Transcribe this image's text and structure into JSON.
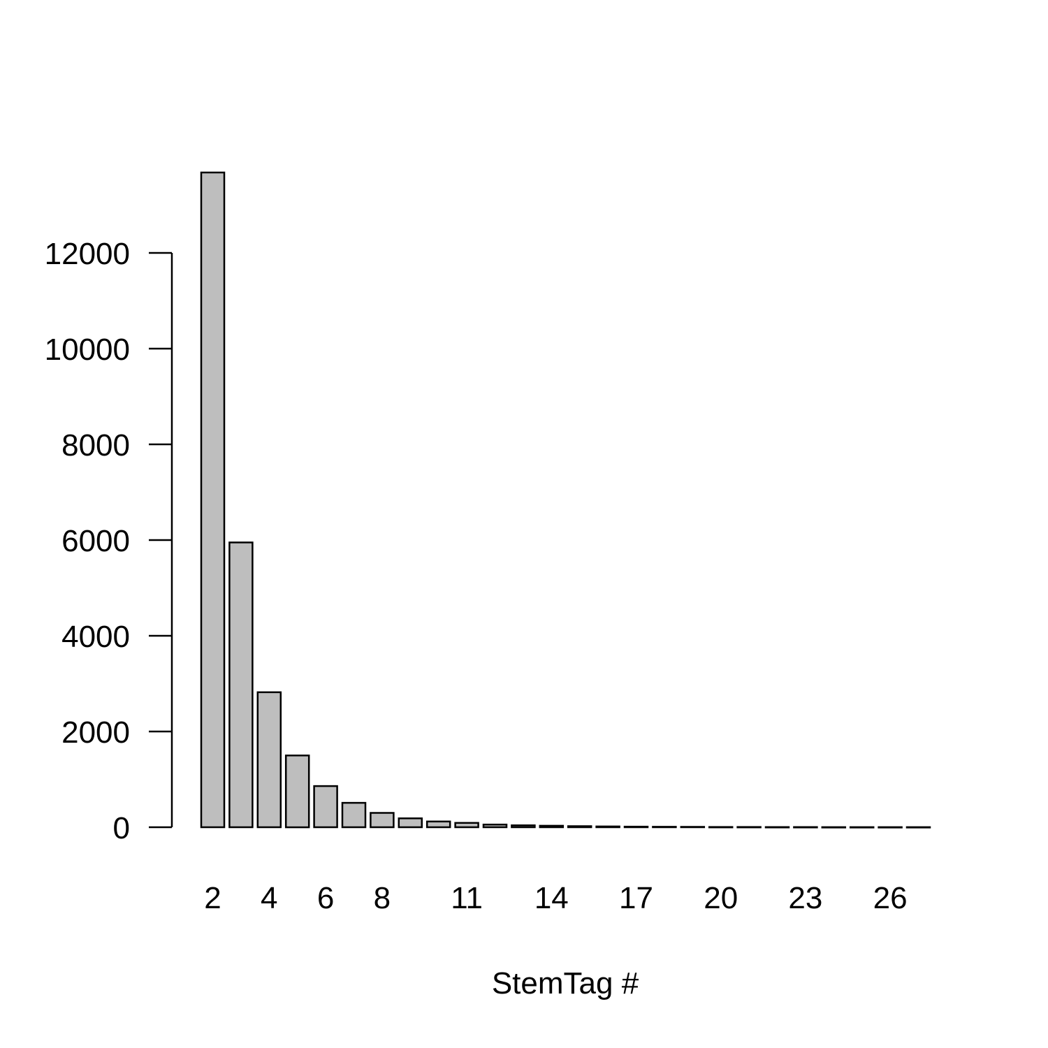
{
  "chart_data": {
    "type": "bar",
    "title": "",
    "xlabel": "StemTag #",
    "ylabel": "",
    "categories": [
      "2",
      "3",
      "4",
      "5",
      "6",
      "7",
      "8",
      "9",
      "10",
      "11",
      "12",
      "13",
      "14",
      "15",
      "16",
      "17",
      "18",
      "19",
      "20",
      "21",
      "22",
      "23",
      "24",
      "25",
      "26",
      "27"
    ],
    "values": [
      13680,
      5950,
      2820,
      1500,
      860,
      510,
      300,
      185,
      120,
      90,
      55,
      40,
      30,
      22,
      16,
      12,
      9,
      7,
      5,
      4,
      3,
      3,
      2,
      2,
      1,
      1
    ],
    "x_tick_labels": [
      "2",
      "4",
      "6",
      "8",
      "11",
      "14",
      "17",
      "20",
      "23",
      "26"
    ],
    "y_ticks": [
      0,
      2000,
      4000,
      6000,
      8000,
      10000,
      12000
    ],
    "y_tick_labels": [
      "0",
      "2000",
      "4000",
      "6000",
      "8000",
      "10000",
      "12000"
    ],
    "ylim": [
      0,
      13680
    ],
    "grid": false,
    "legend": "none",
    "colors": {
      "bar_fill": "#bebebe",
      "bar_stroke": "#000000",
      "axis": "#000000",
      "text": "#000000",
      "background": "#ffffff"
    }
  }
}
